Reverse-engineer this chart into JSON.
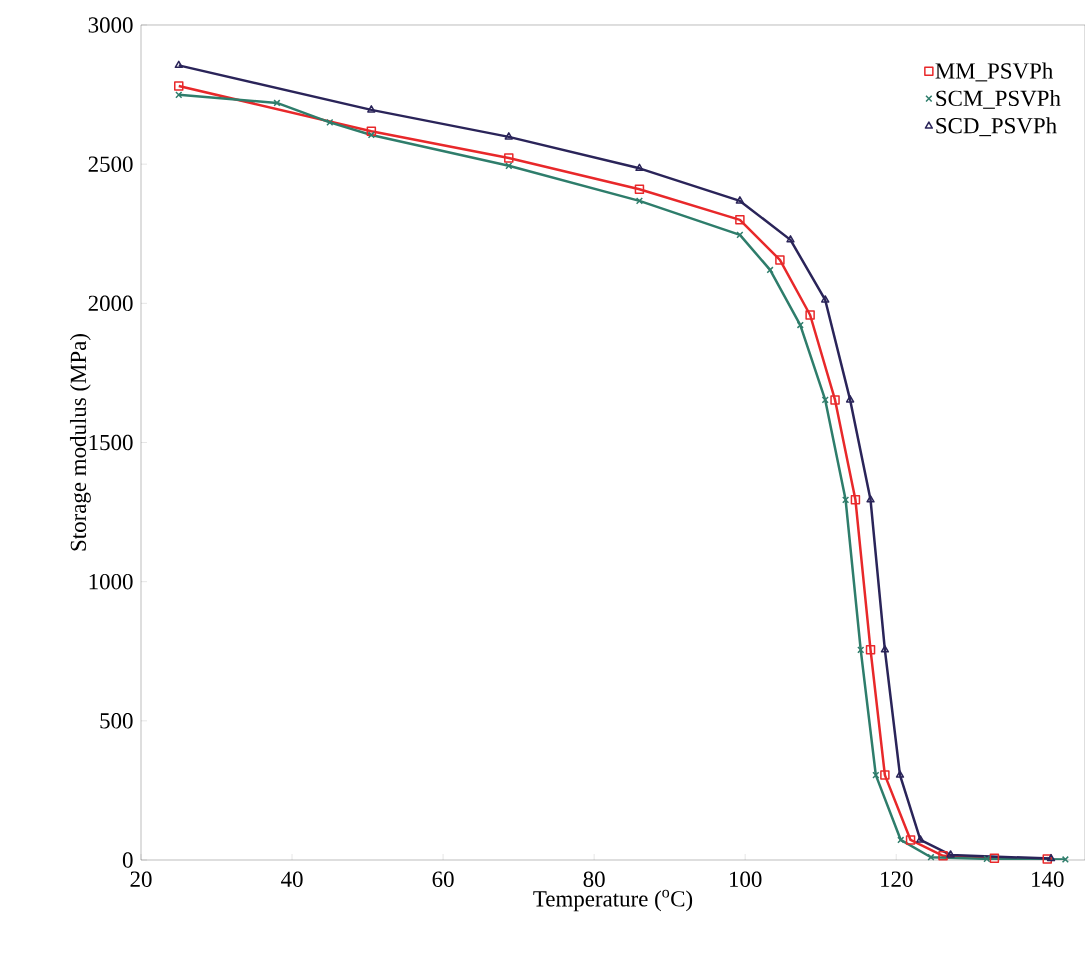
{
  "chart_data": {
    "type": "line",
    "xlabel": "Temperature ($^{o}$C)",
    "ylabel": "Storage modulus (MPa)",
    "xlim": [
      20,
      145
    ],
    "ylim": [
      0,
      3000
    ],
    "xticks": [
      20,
      40,
      60,
      80,
      100,
      120,
      140
    ],
    "yticks": [
      0,
      500,
      1000,
      1500,
      2000,
      2500,
      3000
    ],
    "legend": "top right",
    "grid": false,
    "series": [
      {
        "name": "MM_PSVPh",
        "color": "#e8282a",
        "marker": "square",
        "x": [
          25,
          50.5,
          68.7,
          86,
          99.3,
          104.6,
          108.6,
          111.9,
          114.6,
          116.6,
          118.5,
          121.9,
          126.2,
          133,
          140
        ],
        "values": [
          2781,
          2618,
          2522,
          2410,
          2300,
          2156,
          1958,
          1653,
          1294,
          755,
          305,
          72,
          15,
          6,
          4
        ]
      },
      {
        "name": "SCM_PSVPh",
        "color": "#2e7d6b",
        "marker": "cross",
        "x": [
          25,
          38,
          45,
          50.5,
          68.7,
          86,
          99.3,
          103.3,
          107.3,
          110.6,
          113.3,
          115.3,
          117.3,
          120.6,
          124.6,
          132,
          142.4
        ],
        "values": [
          2749,
          2720,
          2650,
          2605,
          2494,
          2368,
          2246,
          2120,
          1922,
          1653,
          1294,
          755,
          305,
          72,
          10,
          4,
          2
        ]
      },
      {
        "name": "SCD_PSVPh",
        "color": "#2a2459",
        "marker": "triangle",
        "x": [
          25,
          50.5,
          68.7,
          86,
          99.3,
          106,
          110.6,
          113.9,
          116.6,
          118.5,
          120.5,
          123.2,
          127.2,
          140.5
        ],
        "values": [
          2855,
          2695,
          2598,
          2485,
          2368,
          2228,
          2012,
          1653,
          1294,
          755,
          305,
          72,
          18,
          5
        ]
      }
    ]
  }
}
